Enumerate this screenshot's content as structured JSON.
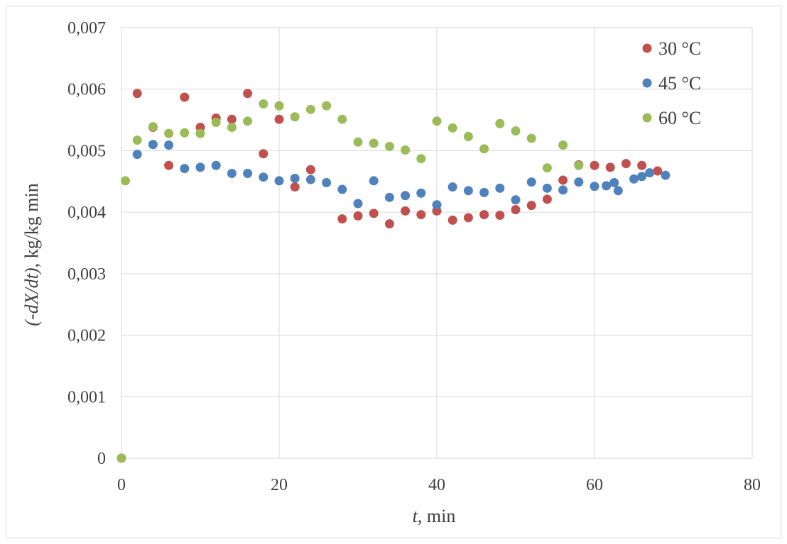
{
  "chart_data": {
    "type": "scatter",
    "title": "",
    "xlabel_italic": "t",
    "xlabel_rest": ", min",
    "ylabel_italic": "(-dX/dt)",
    "ylabel_rest": ", kg/kg min",
    "xlim": [
      0,
      80
    ],
    "ylim": [
      0,
      0.007
    ],
    "x_ticks": [
      0,
      20,
      40,
      60,
      80
    ],
    "x_tick_labels": [
      "0",
      "20",
      "40",
      "60",
      "80"
    ],
    "y_ticks": [
      0,
      0.001,
      0.002,
      0.003,
      0.004,
      0.005,
      0.006,
      0.007
    ],
    "y_tick_labels": [
      "0",
      "0,001",
      "0,002",
      "0,003",
      "0,004",
      "0,005",
      "0,006",
      "0,007"
    ],
    "grid": true,
    "legend_position": "top-right",
    "series": [
      {
        "name": "30 °C",
        "color": "#c0504d",
        "points": [
          [
            0,
            0
          ],
          [
            2,
            0.00593
          ],
          [
            4,
            0.00538
          ],
          [
            6,
            0.00476
          ],
          [
            8,
            0.00587
          ],
          [
            10,
            0.00538
          ],
          [
            12,
            0.00553
          ],
          [
            14,
            0.00551
          ],
          [
            16,
            0.00593
          ],
          [
            18,
            0.00495
          ],
          [
            20,
            0.00551
          ],
          [
            22,
            0.00441
          ],
          [
            24,
            0.00469
          ],
          [
            28,
            0.00389
          ],
          [
            30,
            0.00394
          ],
          [
            32,
            0.00398
          ],
          [
            34,
            0.00381
          ],
          [
            36,
            0.00402
          ],
          [
            38,
            0.00396
          ],
          [
            40,
            0.00402
          ],
          [
            42,
            0.00387
          ],
          [
            44,
            0.00391
          ],
          [
            46,
            0.00396
          ],
          [
            48,
            0.00395
          ],
          [
            50,
            0.00404
          ],
          [
            52,
            0.00411
          ],
          [
            54,
            0.00421
          ],
          [
            56,
            0.00452
          ],
          [
            58,
            0.00477
          ],
          [
            60,
            0.00476
          ],
          [
            62,
            0.00473
          ],
          [
            64,
            0.00479
          ],
          [
            66,
            0.00476
          ],
          [
            68,
            0.00467
          ]
        ]
      },
      {
        "name": "45 °C",
        "color": "#4f81bd",
        "points": [
          [
            0,
            0
          ],
          [
            2,
            0.00494
          ],
          [
            4,
            0.0051
          ],
          [
            6,
            0.00509
          ],
          [
            8,
            0.00471
          ],
          [
            10,
            0.00473
          ],
          [
            12,
            0.00476
          ],
          [
            14,
            0.00463
          ],
          [
            16,
            0.00463
          ],
          [
            18,
            0.00457
          ],
          [
            20,
            0.00451
          ],
          [
            22,
            0.00455
          ],
          [
            24,
            0.00453
          ],
          [
            26,
            0.00448
          ],
          [
            28,
            0.00437
          ],
          [
            30,
            0.00414
          ],
          [
            32,
            0.00451
          ],
          [
            34,
            0.00424
          ],
          [
            36,
            0.00427
          ],
          [
            38,
            0.00431
          ],
          [
            40,
            0.00412
          ],
          [
            42,
            0.00441
          ],
          [
            44,
            0.00435
          ],
          [
            46,
            0.00432
          ],
          [
            48,
            0.00439
          ],
          [
            50,
            0.0042
          ],
          [
            52,
            0.00449
          ],
          [
            54,
            0.00439
          ],
          [
            56,
            0.00436
          ],
          [
            58,
            0.00449
          ],
          [
            60,
            0.00442
          ],
          [
            61.5,
            0.00443
          ],
          [
            62.5,
            0.00448
          ],
          [
            63,
            0.00435
          ],
          [
            65,
            0.00454
          ],
          [
            66,
            0.00458
          ],
          [
            67,
            0.00464
          ],
          [
            69,
            0.0046
          ]
        ]
      },
      {
        "name": "60 °C",
        "color": "#9bbb59",
        "points": [
          [
            0,
            0
          ],
          [
            0.5,
            0.00451
          ],
          [
            2,
            0.00517
          ],
          [
            4,
            0.00539
          ],
          [
            6,
            0.00528
          ],
          [
            8,
            0.00529
          ],
          [
            10,
            0.00528
          ],
          [
            12,
            0.00546
          ],
          [
            14,
            0.00538
          ],
          [
            16,
            0.00548
          ],
          [
            18,
            0.00576
          ],
          [
            20,
            0.00573
          ],
          [
            22,
            0.00555
          ],
          [
            24,
            0.00567
          ],
          [
            26,
            0.00573
          ],
          [
            28,
            0.00551
          ],
          [
            30,
            0.00514
          ],
          [
            32,
            0.00512
          ],
          [
            34,
            0.00507
          ],
          [
            36,
            0.00501
          ],
          [
            38,
            0.00487
          ],
          [
            40,
            0.00548
          ],
          [
            42,
            0.00537
          ],
          [
            44,
            0.00523
          ],
          [
            46,
            0.00503
          ],
          [
            48,
            0.00544
          ],
          [
            50,
            0.00532
          ],
          [
            52,
            0.0052
          ],
          [
            54,
            0.00472
          ],
          [
            56,
            0.00509
          ],
          [
            58,
            0.00476
          ]
        ]
      }
    ]
  }
}
